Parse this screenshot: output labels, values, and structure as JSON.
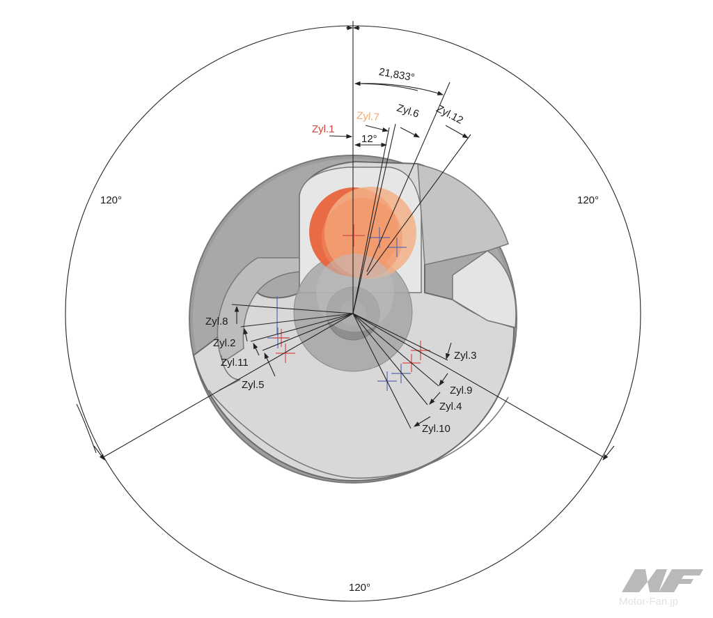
{
  "diagram": {
    "angles": {
      "sector_left": "120°",
      "sector_right": "120°",
      "sector_bottom": "120°",
      "offset_total": "21,833°",
      "offset_small": "12°"
    },
    "cylinders": {
      "zyl1": "Zyl.1",
      "zyl7": "Zyl.7",
      "zyl6": "Zyl.6",
      "zyl12": "Zyl.12",
      "zyl8": "Zyl.8",
      "zyl2": "Zyl.2",
      "zyl11": "Zyl.11",
      "zyl5": "Zyl.5",
      "zyl3": "Zyl.3",
      "zyl9": "Zyl.9",
      "zyl4": "Zyl.4",
      "zyl10": "Zyl.10"
    },
    "colors": {
      "zyl1": "#d2423c",
      "zyl7": "#f0a86a",
      "crankpin_dark": "#e8643c",
      "crankpin_light": "#f2a77a",
      "marker_red": "#d94a48",
      "marker_blue": "#5a68b0"
    }
  },
  "watermark": {
    "text": "Motor-Fan.jp"
  }
}
